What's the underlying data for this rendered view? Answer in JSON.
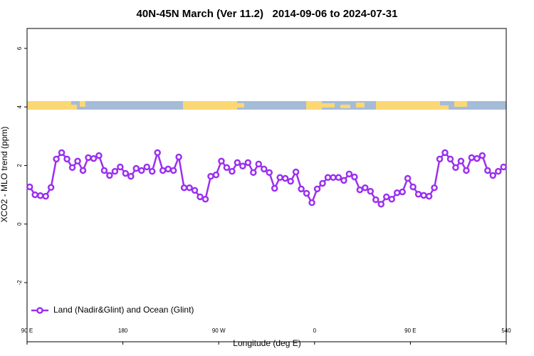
{
  "chart_data": {
    "type": "line",
    "title": "40N-45N March (Ver 11.2)   2014-09-06 to 2024-07-31",
    "xlabel": "Longitude (deg E)",
    "ylabel": "XCO2 - MLO trend (ppm)",
    "xlim": [
      90,
      540
    ],
    "ylim": [
      -4.02,
      6.68
    ],
    "xticks": [
      {
        "value": 90,
        "label": "90 E"
      },
      180,
      {
        "value": 270,
        "label": "90 W"
      },
      {
        "value": 360,
        "label": "0"
      },
      {
        "value": 450,
        "label": "90 E"
      },
      540
    ],
    "yticks": [
      -2,
      0,
      2,
      4,
      6
    ],
    "legend": "bottom-left",
    "x": [
      92.5,
      97.5,
      102.5,
      107.5,
      112.5,
      117.5,
      122.5,
      127.5,
      132.5,
      137.5,
      142.5,
      147.5,
      152.5,
      157.5,
      162.5,
      167.5,
      172.5,
      177.5,
      182.5,
      187.5,
      192.5,
      197.5,
      202.5,
      207.5,
      212.5,
      217.5,
      222.5,
      227.5,
      232.5,
      237.5,
      242.5,
      247.5,
      252.5,
      257.5,
      262.5,
      267.5,
      272.5,
      277.5,
      282.5,
      287.5,
      292.5,
      297.5,
      302.5,
      307.5,
      312.5,
      317.5,
      322.5,
      327.5,
      332.5,
      337.5,
      342.5,
      347.5,
      352.5,
      357.5,
      362.5,
      367.5,
      372.5,
      377.5,
      382.5,
      387.5,
      392.5,
      397.5,
      402.5,
      407.5,
      412.5,
      417.5,
      422.5,
      427.5,
      432.5,
      437.5,
      442.5,
      447.5,
      452.5,
      457.5,
      462.5,
      467.5,
      472.5,
      477.5,
      482.5,
      487.5,
      492.5,
      497.5,
      502.5,
      507.5,
      512.5,
      517.5,
      522.5,
      527.5,
      532.5,
      537.5
    ],
    "series": [
      {
        "name": "Land (Nadir&Glint) and Ocean (Glint)",
        "color": "#9b30f0",
        "values": [
          1.27,
          1.0,
          0.97,
          0.95,
          1.25,
          2.22,
          2.44,
          2.22,
          1.93,
          2.15,
          1.83,
          2.27,
          2.24,
          2.34,
          1.83,
          1.66,
          1.8,
          1.95,
          1.73,
          1.63,
          1.9,
          1.83,
          1.95,
          1.8,
          2.44,
          1.83,
          1.88,
          1.83,
          2.29,
          1.24,
          1.24,
          1.15,
          0.93,
          0.85,
          1.63,
          1.68,
          2.15,
          1.93,
          1.8,
          2.1,
          1.98,
          2.1,
          1.76,
          2.05,
          1.88,
          1.76,
          1.22,
          1.59,
          1.56,
          1.46,
          1.78,
          1.2,
          1.05,
          0.73,
          1.2,
          1.39,
          1.59,
          1.59,
          1.59,
          1.49,
          1.71,
          1.61,
          1.17,
          1.24,
          1.12,
          0.83,
          0.68,
          0.93,
          0.85,
          1.07,
          1.1,
          1.56,
          1.27,
          1.02,
          0.98,
          0.95,
          1.24,
          2.22,
          2.44,
          2.22,
          1.93,
          2.15,
          1.83,
          2.27,
          2.24,
          2.34,
          1.83,
          1.66,
          1.8,
          1.95
        ]
      }
    ]
  }
}
